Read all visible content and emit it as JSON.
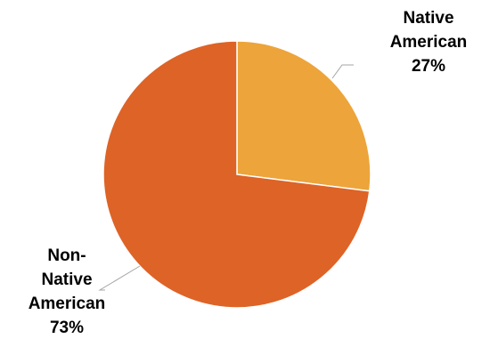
{
  "chart_data": {
    "type": "pie",
    "title": "",
    "start_angle_deg": 0,
    "direction": "clockwise",
    "slices": [
      {
        "label_lines": [
          "Native",
          "American",
          "27%"
        ],
        "value": 27,
        "color": "#EDA43A"
      },
      {
        "label_lines": [
          "Non-",
          "Native",
          "American",
          "73%"
        ],
        "value": 73,
        "color": "#DE6326"
      }
    ],
    "leader_line_color": "#A6A6A6"
  }
}
